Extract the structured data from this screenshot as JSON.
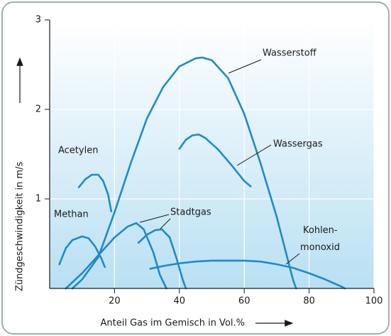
{
  "chart_data": {
    "type": "line",
    "xlabel": "Anteil Gas im Gemisch in Vol.%",
    "ylabel": "Zündgeschwindigkeit in m/s",
    "xlim": [
      0,
      100
    ],
    "xticks": [
      20,
      40,
      60,
      80,
      100
    ],
    "ylim": [
      0,
      3
    ],
    "yticks": [
      1,
      2,
      3
    ],
    "grid": true,
    "series": [
      {
        "name": "Wasserstoff",
        "color": "#1f8ac9",
        "x": [
          7,
          10,
          15,
          20,
          25,
          30,
          35,
          40,
          45,
          47,
          50,
          55,
          60,
          65,
          70,
          75,
          76
        ],
        "values": [
          0,
          0.1,
          0.35,
          0.85,
          1.4,
          1.9,
          2.25,
          2.48,
          2.57,
          2.58,
          2.55,
          2.35,
          1.95,
          1.4,
          0.8,
          0.1,
          0
        ]
      },
      {
        "name": "Wassergas",
        "color": "#1f8ac9",
        "x": [
          40,
          42,
          44,
          46,
          48,
          52,
          56,
          60,
          62
        ],
        "values": [
          1.56,
          1.66,
          1.71,
          1.72,
          1.68,
          1.55,
          1.38,
          1.2,
          1.14
        ]
      },
      {
        "name": "Acetylen",
        "color": "#1f8ac9",
        "x": [
          9,
          11,
          13,
          15,
          16.5,
          18,
          19
        ],
        "values": [
          1.13,
          1.22,
          1.27,
          1.27,
          1.2,
          1.05,
          0.86
        ]
      },
      {
        "name": "Methan",
        "color": "#1f8ac9",
        "x": [
          3,
          5,
          7,
          10,
          12,
          14,
          16,
          17
        ],
        "values": [
          0.27,
          0.45,
          0.54,
          0.58,
          0.56,
          0.47,
          0.33,
          0.24
        ]
      },
      {
        "name": "Stadtgas",
        "color": "#1f8ac9",
        "x": [
          5,
          10,
          15,
          20,
          24,
          26.7,
          29,
          32,
          34,
          36,
          null,
          27.4,
          30,
          32.5,
          34.6,
          37,
          39,
          41,
          42
        ],
        "values": [
          0,
          0.17,
          0.37,
          0.57,
          0.69,
          0.73,
          0.66,
          0.4,
          0.15,
          0,
          null,
          0.51,
          0.6,
          0.65,
          0.66,
          0.57,
          0.35,
          0.1,
          0
        ]
      },
      {
        "name": "Kohlen-\nmonoxid",
        "color": "#1f8ac9",
        "x": [
          31,
          35,
          40,
          45,
          50,
          55,
          60,
          65,
          70,
          75,
          80,
          85,
          90,
          91
        ],
        "values": [
          0.22,
          0.25,
          0.28,
          0.3,
          0.31,
          0.31,
          0.31,
          0.3,
          0.27,
          0.23,
          0.17,
          0.1,
          0.02,
          0
        ]
      }
    ]
  }
}
